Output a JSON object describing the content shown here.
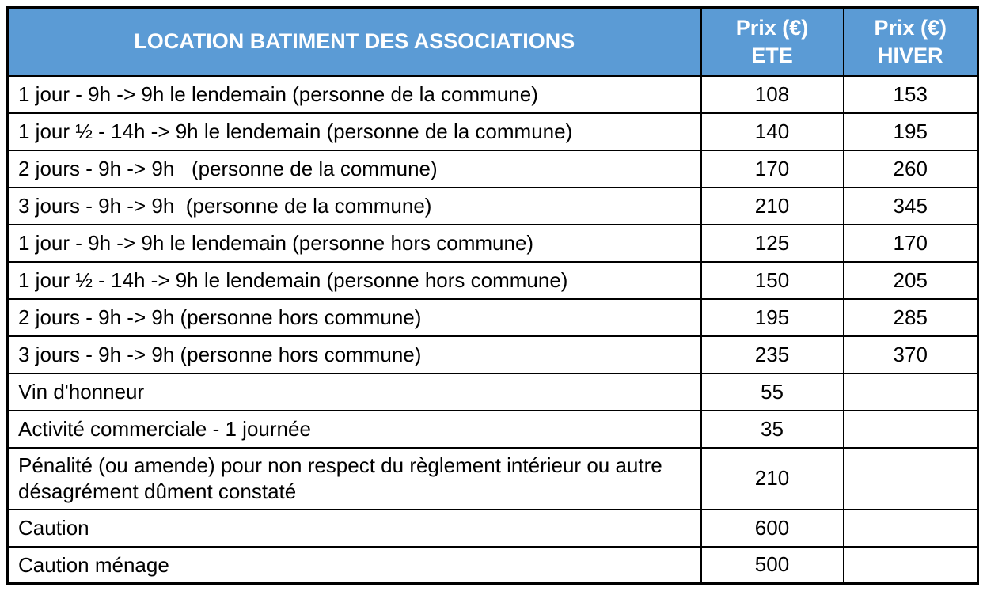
{
  "colors": {
    "header_bg": "#5b9bd5",
    "header_text": "#ffffff",
    "border": "#000000",
    "body_text": "#000000"
  },
  "table": {
    "title": "LOCATION BATIMENT DES ASSOCIATIONS",
    "columns": {
      "ete": "Prix (€)\nETE",
      "hiver": "Prix (€)\nHIVER"
    },
    "rows": [
      {
        "label": "1 jour - 9h -> 9h le lendemain (personne de la commune)",
        "ete": "108",
        "hiver": "153"
      },
      {
        "label": "1 jour ½ - 14h -> 9h le lendemain (personne de la commune)",
        "ete": "140",
        "hiver": "195"
      },
      {
        "label": "2 jours - 9h -> 9h   (personne de la commune)",
        "ete": "170",
        "hiver": "260"
      },
      {
        "label": "3 jours - 9h -> 9h  (personne de la commune)",
        "ete": "210",
        "hiver": "345"
      },
      {
        "label": "1 jour - 9h -> 9h le lendemain (personne hors commune)",
        "ete": "125",
        "hiver": "170"
      },
      {
        "label": "1 jour ½ - 14h -> 9h le lendemain (personne hors commune)",
        "ete": "150",
        "hiver": "205"
      },
      {
        "label": "2 jours - 9h -> 9h (personne hors commune)",
        "ete": "195",
        "hiver": "285"
      },
      {
        "label": "3 jours - 9h -> 9h (personne hors commune)",
        "ete": "235",
        "hiver": "370"
      },
      {
        "label": "Vin d'honneur",
        "ete": "55",
        "hiver": ""
      },
      {
        "label": "Activité commerciale - 1 journée",
        "ete": "35",
        "hiver": ""
      },
      {
        "label": "Pénalité (ou amende) pour non respect du règlement intérieur ou autre désagrément dûment constaté",
        "ete": "210",
        "hiver": ""
      },
      {
        "label": "Caution",
        "ete": "600",
        "hiver": ""
      },
      {
        "label": "Caution ménage",
        "ete": "500",
        "hiver": ""
      }
    ]
  }
}
